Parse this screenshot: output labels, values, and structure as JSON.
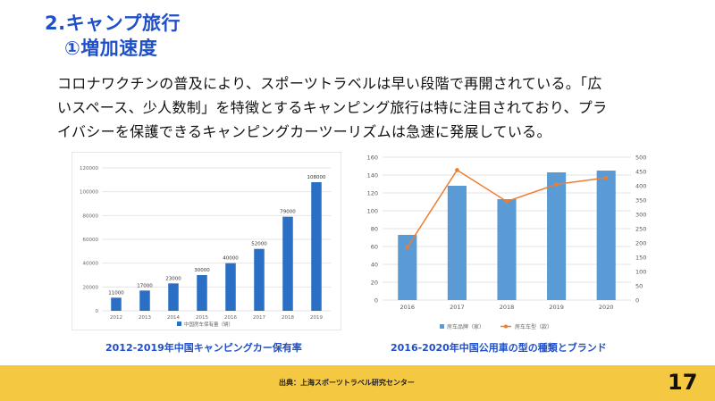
{
  "header": {
    "title": "2.キャンプ旅行",
    "subtitle": "①増加速度"
  },
  "body": {
    "lines": [
      "コロナワクチンの普及により、スポーツトラベルは早い段階で再開されている。「広",
      "いスペース、少人数制」を特徴とするキャンピング旅行は特に注目されており、プラ",
      "イバシーを保護できるキャンピングカーツーリズムは急速に発展している。"
    ]
  },
  "colors": {
    "title": "#1f4fc9",
    "bar1": "#2a6fc4",
    "bar2": "#5b9bd5",
    "line": "#ed7d31",
    "footer": "#f5c842"
  },
  "chart_data": [
    {
      "type": "bar",
      "categories": [
        "2012",
        "2013",
        "2014",
        "2015",
        "2016",
        "2017",
        "2018",
        "2019"
      ],
      "series": [
        {
          "name": "中国房车保有量（辆）",
          "values": [
            11000,
            17000,
            23000,
            30000,
            40000,
            52000,
            79000,
            108000
          ]
        }
      ],
      "data_labels": [
        "11000",
        "17000",
        "23000",
        "30000",
        "40000",
        "52000",
        "79000",
        "108000"
      ],
      "y_ticks": [
        "0",
        "20000",
        "40000",
        "60000",
        "80000",
        "100000",
        "120000"
      ],
      "ylim": [
        0,
        120000
      ],
      "grid": true,
      "legend": "bottom",
      "caption": "2012-2019年中国キャンピングカー保有率"
    },
    {
      "type": "bar",
      "categories": [
        "2016",
        "2017",
        "2018",
        "2019",
        "2020"
      ],
      "series": [
        {
          "name": "房车品牌（家）",
          "type": "bar",
          "axis": "left",
          "values": [
            73,
            128,
            113,
            143,
            145
          ]
        },
        {
          "name": "房车车型（款）",
          "type": "line",
          "axis": "right",
          "values": [
            185,
            455,
            345,
            405,
            428
          ]
        }
      ],
      "y_ticks_left": [
        "0",
        "20",
        "40",
        "60",
        "80",
        "100",
        "120",
        "140",
        "160"
      ],
      "y_ticks_right": [
        "0",
        "50",
        "100",
        "150",
        "200",
        "250",
        "300",
        "350",
        "400",
        "450",
        "500"
      ],
      "ylim_left": [
        0,
        160
      ],
      "ylim_right": [
        0,
        500
      ],
      "grid": true,
      "legend": "bottom",
      "caption": "2016-2020年中国公用車の型の種類とブランド"
    }
  ],
  "footer": {
    "source": "出典：上海スポーツトラベル研究センター",
    "page_number": "17"
  }
}
